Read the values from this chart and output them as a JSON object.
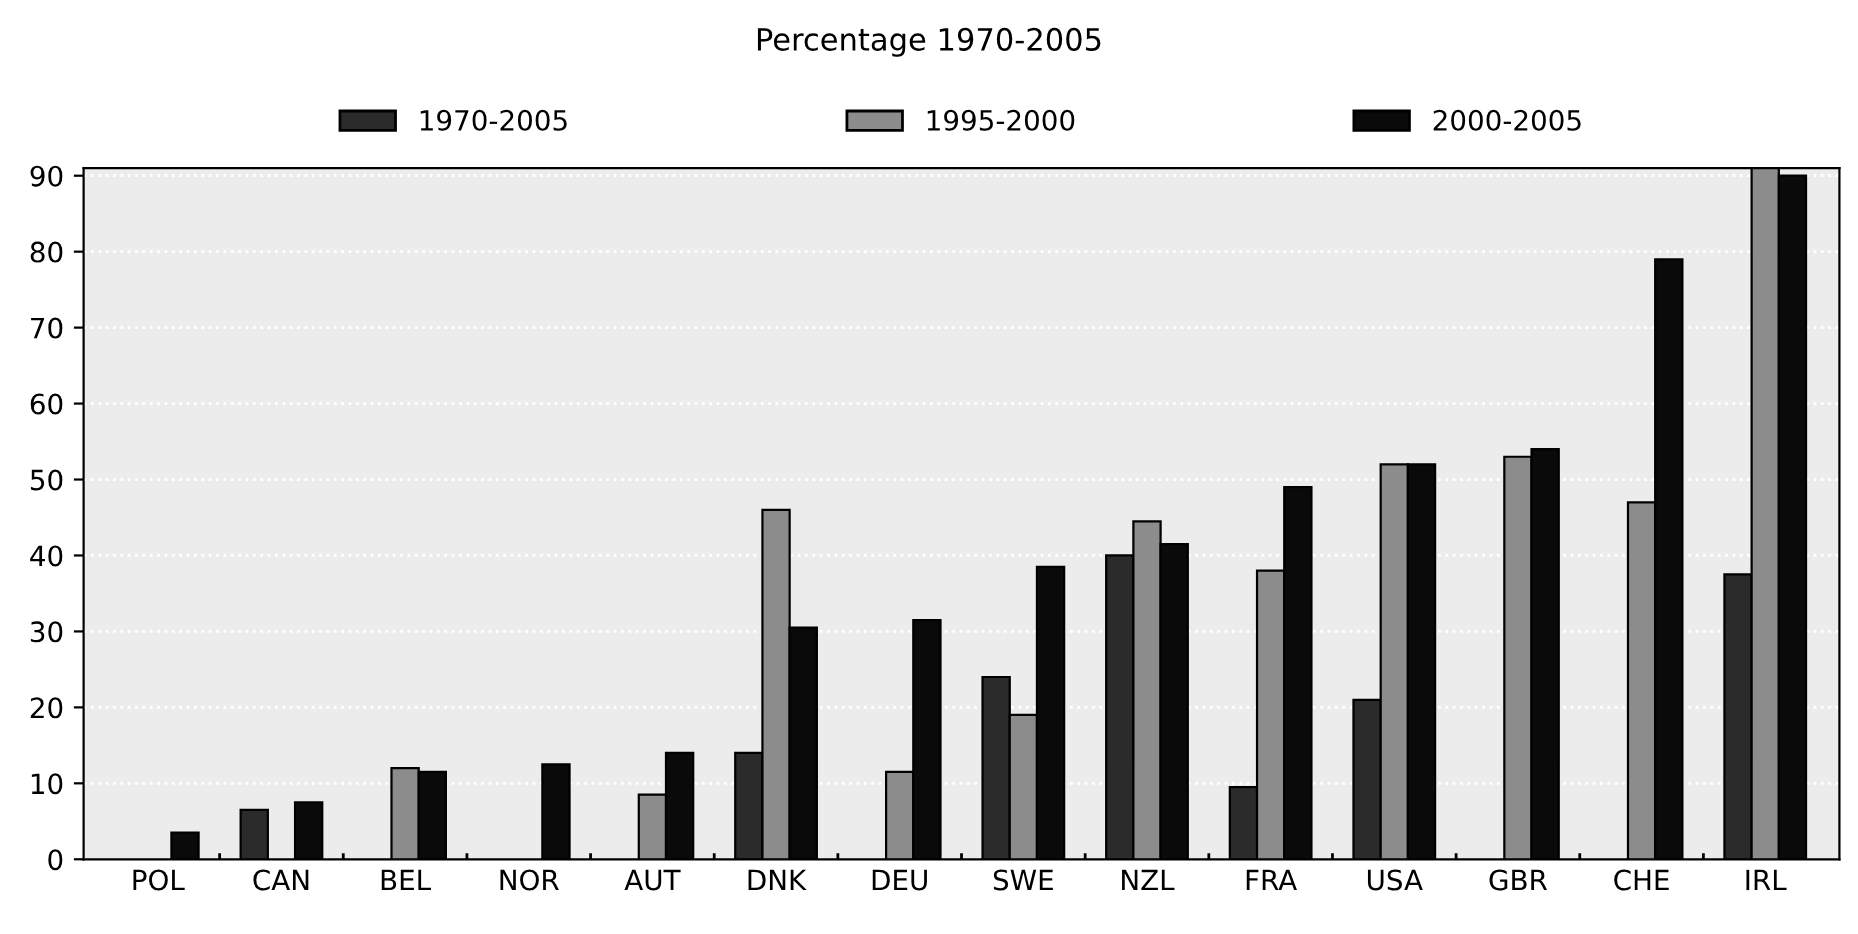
{
  "chart_data": {
    "type": "bar",
    "title": "Percentage 1970-2005",
    "categories": [
      "POL",
      "CAN",
      "BEL",
      "NOR",
      "AUT",
      "DNK",
      "DEU",
      "SWE",
      "NZL",
      "FRA",
      "USA",
      "GBR",
      "CHE",
      "IRL"
    ],
    "series": [
      {
        "name": "1970-2005",
        "color": "#2b2b2b",
        "values": [
          null,
          6.5,
          null,
          null,
          null,
          14,
          null,
          24,
          40,
          9.5,
          21,
          null,
          null,
          37.5
        ]
      },
      {
        "name": "1995-2000",
        "color": "#8c8c8c",
        "values": [
          null,
          null,
          12,
          null,
          8.5,
          46,
          11.5,
          19,
          44.5,
          38,
          52,
          53,
          47,
          91
        ]
      },
      {
        "name": "2000-2005",
        "color": "#0a0a0a",
        "values": [
          3.5,
          7.5,
          11.5,
          12.5,
          14,
          30.5,
          31.5,
          38.5,
          41.5,
          49,
          52,
          54,
          79,
          90
        ]
      }
    ],
    "ylim": [
      0,
      91
    ],
    "yticks": [
      0,
      10,
      20,
      30,
      40,
      50,
      60,
      70,
      80,
      90
    ],
    "grid": "y",
    "legend": "top"
  }
}
